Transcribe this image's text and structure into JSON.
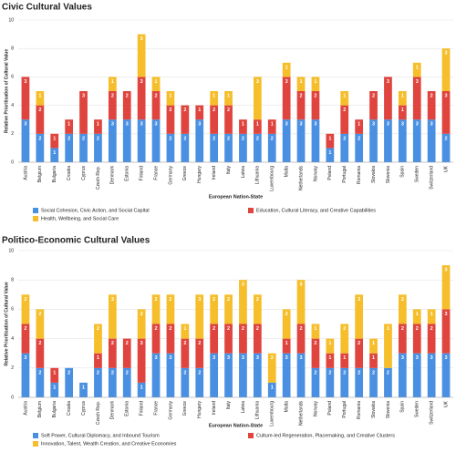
{
  "chart_data": [
    {
      "type": "stacked_bar",
      "title": "Civic Cultural Values",
      "y_label": "Relative Prioritisation of Cultural Value",
      "x_label": "European Nation-State",
      "categories": [
        "Austria",
        "Belgium",
        "Bulgaria",
        "Croatia",
        "Cyprus",
        "Czech Rep.",
        "Denmark",
        "Estonia",
        "Finland",
        "France",
        "Germany",
        "Greece",
        "Hungary",
        "Ireland",
        "Italy",
        "Latvia",
        "Lithuania",
        "Luxembourg",
        "Malta",
        "Netherlands",
        "Norway",
        "Poland",
        "Portugal",
        "Romania",
        "Slovakia",
        "Slovenia",
        "Spain",
        "Sweden",
        "Switzerland",
        "UK"
      ],
      "series": [
        {
          "name": "Social Cohesion, Civic Action, and Social Capital",
          "color": "#4a90e2",
          "values": [
            3,
            2,
            1,
            2,
            2,
            2,
            3,
            3,
            3,
            3,
            2,
            2,
            3,
            2,
            2,
            2,
            2,
            2,
            3,
            3,
            3,
            1,
            2,
            2,
            3,
            3,
            3,
            3,
            3,
            2
          ]
        },
        {
          "name": "Education, Cultural Literacy, and Creative Capabilities",
          "color": "#e0443e",
          "values": [
            3,
            2,
            1,
            1,
            3,
            1,
            2,
            2,
            3,
            2,
            2,
            2,
            1,
            2,
            2,
            1,
            1,
            1,
            3,
            2,
            2,
            1,
            2,
            1,
            2,
            3,
            1,
            3,
            2,
            3
          ]
        },
        {
          "name": "Health, Wellbeing, and Social Care",
          "color": "#f5be2a",
          "values": [
            0,
            1,
            0,
            0,
            0,
            0,
            1,
            0,
            3,
            1,
            1,
            0,
            0,
            1,
            1,
            0,
            3,
            0,
            1,
            1,
            1,
            0,
            1,
            0,
            0,
            0,
            1,
            1,
            0,
            3
          ]
        }
      ],
      "ylim": [
        0,
        10
      ],
      "yticks": [
        0,
        2,
        4,
        6,
        8,
        10
      ],
      "grid": true
    },
    {
      "type": "stacked_bar",
      "title": "Politico-Economic Cultural Values",
      "y_label": "Relative Prioritisation of Cultural Value",
      "x_label": "European Nation-State",
      "categories": [
        "Austria",
        "Belgium",
        "Bulgaria",
        "Croatia",
        "Cyprus",
        "Czech Rep.",
        "Denmark",
        "Estonia",
        "Finland",
        "France",
        "Germany",
        "Greece",
        "Hungary",
        "Ireland",
        "Italy",
        "Latvia",
        "Lithuania",
        "Luxembourg",
        "Malta",
        "Netherlands",
        "Norway",
        "Poland",
        "Portugal",
        "Romania",
        "Slovakia",
        "Slovenia",
        "Spain",
        "Sweden",
        "Switzerland",
        "UK"
      ],
      "series": [
        {
          "name": "Soft Power, Cultural Diplomacy, and Inbound Tourism",
          "color": "#4a90e2",
          "values": [
            3,
            2,
            1,
            2,
            1,
            2,
            2,
            2,
            1,
            3,
            3,
            2,
            2,
            3,
            3,
            3,
            3,
            1,
            3,
            3,
            2,
            2,
            2,
            2,
            2,
            2,
            3,
            3,
            3,
            3
          ]
        },
        {
          "name": "Culture-led Regeneration, Placemaking, and Creative Clusters",
          "color": "#e0443e",
          "values": [
            2,
            2,
            1,
            0,
            0,
            1,
            2,
            2,
            3,
            2,
            2,
            2,
            2,
            2,
            2,
            2,
            2,
            0,
            1,
            2,
            2,
            1,
            1,
            2,
            1,
            0,
            2,
            2,
            2,
            3
          ]
        },
        {
          "name": "Innovation, Talent, Wealth Creation, and Creative Economies",
          "color": "#f5be2a",
          "values": [
            2,
            2,
            0,
            0,
            0,
            2,
            3,
            0,
            2,
            2,
            2,
            1,
            3,
            2,
            2,
            3,
            2,
            2,
            2,
            3,
            1,
            1,
            2,
            3,
            1,
            3,
            2,
            1,
            1,
            3
          ]
        }
      ],
      "ylim": [
        0,
        10
      ],
      "yticks": [
        0,
        2,
        4,
        6,
        8,
        10
      ],
      "grid": true
    }
  ]
}
